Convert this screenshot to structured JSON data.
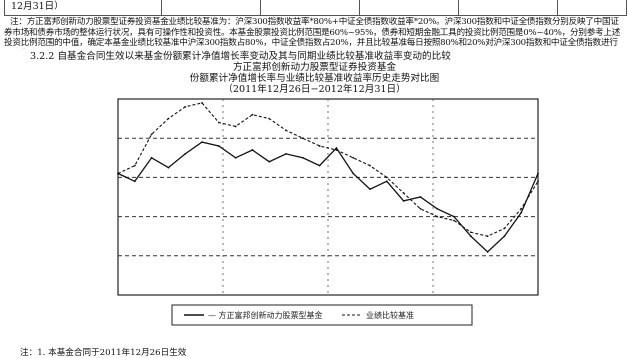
{
  "table_fragment": {
    "cells": [
      "12月31日）",
      "",
      "",
      "",
      "",
      ""
    ]
  },
  "note": "注：方正富邦创新动力股票型证券投资基金业绩比较基准为：沪深300指数收益率*80%+中证全债指数收益率*20%。沪深300指数和中证全债指数分别反映了中国证券市场和债券市场的整体运行状况，具有可操作性和投资性。本基金股票投资比例范围是60%~95%，债券和短期金融工具的投资比例范围是0%~40%，分别参考上述投资比例范围的中值，确定本基金业绩比较基准中沪深300指数占80%，中证全债指数占20%，并且比较基准每日按照80%和20%对沪深300指数和中证全债指数进行再平衡。",
  "section_heading": "3.2.2 自基金合同生效以来基金份额累计净值增长率变动及其与同期业绩比较基准收益率变动的比较",
  "chart_titles": [
    "方正富邦创新动力股票型证券投资基金",
    "份额累计净值增长率与业绩比较基准收益率历史走势对比图",
    "（2011年12月26日−2012年12月31日）"
  ],
  "chart_data": {
    "type": "line",
    "title": "份额累计净值增长率与业绩比较基准收益率历史走势对比图",
    "x": [
      0,
      4,
      8,
      12,
      16,
      20,
      24,
      28,
      32,
      36,
      40,
      44,
      48,
      52,
      56,
      60,
      64,
      68,
      72,
      76,
      80,
      84,
      88,
      92,
      96,
      100
    ],
    "series": [
      {
        "style": "solid",
        "values": [
          62,
          58,
          70,
          65,
          72,
          78,
          76,
          70,
          74,
          68,
          72,
          70,
          66,
          75,
          62,
          54,
          58,
          48,
          50,
          44,
          40,
          30,
          22,
          30,
          42,
          62
        ]
      },
      {
        "style": "dashed",
        "values": [
          62,
          66,
          82,
          90,
          96,
          98,
          88,
          86,
          92,
          90,
          84,
          80,
          76,
          74,
          70,
          66,
          60,
          52,
          44,
          40,
          38,
          32,
          30,
          34,
          44,
          58
        ]
      }
    ],
    "ylim": [
      0,
      100
    ],
    "dashed_reference_levels": [
      20,
      40,
      60,
      80
    ],
    "legend": {
      "position": "bottom",
      "labels": [
        "— 方正富邦创新动力股票型基金",
        "业绩比较基准"
      ]
    },
    "colors": {
      "line": "#111111",
      "frame": "#222222"
    }
  },
  "footnote": "注：1. 本基金合同于2011年12月26日生效"
}
